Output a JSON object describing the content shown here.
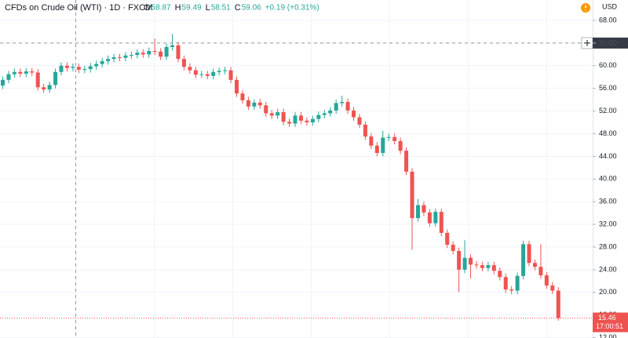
{
  "chart_data": {
    "type": "candlestick",
    "header": {
      "symbol": "CFDs on Crude Oil (WTI) · 1D · FXCM",
      "ohlc": [
        {
          "label": "O",
          "value": "58.87"
        },
        {
          "label": "H",
          "value": "59.49"
        },
        {
          "label": "L",
          "value": "58.51"
        },
        {
          "label": "C",
          "value": "59.06"
        }
      ],
      "change": "+0.19 (+0.31%)"
    },
    "currency": "USD",
    "up_color": "#26a69a",
    "down_color": "#ef5350",
    "grid": true,
    "ylim": [
      11.94,
      71.6
    ],
    "yticks": [
      {
        "value": 12,
        "label": "12.00"
      },
      {
        "value": 16,
        "label": "16.00"
      },
      {
        "value": 20,
        "label": "20.00"
      },
      {
        "value": 24,
        "label": "24.00"
      },
      {
        "value": 28,
        "label": "28.00"
      },
      {
        "value": 32,
        "label": "32.00"
      },
      {
        "value": 36,
        "label": "36.00"
      },
      {
        "value": 40,
        "label": "40.00"
      },
      {
        "value": 44,
        "label": "44.00"
      },
      {
        "value": 48,
        "label": "48.00"
      },
      {
        "value": 52,
        "label": "52.00"
      },
      {
        "value": 56,
        "label": "56.00"
      },
      {
        "value": 60,
        "label": "60.00"
      },
      {
        "value": 64,
        "label": "64.00"
      },
      {
        "value": 68,
        "label": "68.00"
      }
    ],
    "crosshair": {
      "value": 64,
      "label": "64.00"
    },
    "last_price": {
      "value": 15.46,
      "label": "15.46"
    },
    "countdown": "17:00:51",
    "ohlc": {
      "open": [
        56.5,
        57.5,
        58.5,
        58.9,
        58.6,
        59.0,
        58.8,
        56.2,
        55.8,
        56.6,
        58.9,
        60.0,
        59.6,
        59.8,
        59.3,
        59.4,
        59.9,
        60.3,
        60.8,
        61.2,
        61.5,
        61.4,
        61.8,
        61.9,
        62.3,
        62.0,
        62.6,
        62.5,
        61.6,
        63.3,
        63.6,
        61.2,
        59.8,
        59.2,
        58.4,
        58.5,
        58.2,
        58.9,
        59.1,
        59.2,
        57.5,
        55.1,
        53.9,
        52.8,
        53.5,
        53.0,
        51.6,
        51.2,
        51.8,
        50.1,
        49.8,
        51.2,
        50.3,
        50.0,
        50.6,
        51.3,
        51.6,
        52.1,
        53.4,
        53.6,
        52.1,
        50.9,
        49.6,
        47.5,
        45.9,
        44.6,
        47.3,
        47.4,
        46.7,
        45.0,
        41.3,
        33.1,
        35.4,
        34.1,
        32.2,
        34.2,
        30.5,
        28.4,
        27.3,
        24.0,
        26.1,
        24.9,
        24.8,
        24.3,
        24.8,
        23.8,
        22.7,
        20.5,
        20.3,
        22.9,
        28.5,
        25.2,
        24.5,
        23.0,
        21.2,
        20.3
      ],
      "high": [
        58.1,
        59.1,
        59.5,
        59.5,
        59.6,
        59.6,
        59.4,
        56.8,
        57.2,
        59.5,
        60.6,
        60.6,
        60.4,
        60.4,
        60.0,
        60.5,
        60.9,
        61.4,
        61.8,
        62.1,
        62.1,
        62.4,
        62.5,
        62.9,
        62.9,
        63.2,
        64.8,
        63.1,
        63.9,
        65.6,
        64.2,
        61.8,
        60.4,
        59.8,
        59.1,
        59.1,
        59.5,
        59.7,
        59.8,
        59.8,
        58.1,
        55.7,
        54.5,
        54.1,
        54.1,
        53.6,
        52.2,
        52.4,
        52.4,
        50.7,
        51.8,
        51.8,
        50.9,
        51.2,
        51.9,
        52.2,
        52.7,
        54.0,
        54.7,
        54.2,
        52.7,
        51.5,
        50.2,
        48.1,
        46.5,
        48.5,
        48.0,
        48.0,
        47.3,
        45.6,
        41.9,
        36.5,
        36.0,
        34.7,
        34.8,
        34.8,
        31.1,
        29.0,
        27.9,
        29.2,
        26.7,
        25.5,
        25.4,
        25.4,
        25.4,
        24.4,
        23.3,
        21.1,
        23.5,
        29.1,
        29.1,
        25.8,
        28.5,
        23.6,
        21.8,
        20.9
      ],
      "low": [
        55.9,
        56.9,
        57.9,
        58.0,
        58.0,
        58.2,
        55.6,
        55.2,
        55.2,
        56.0,
        58.3,
        59.0,
        59.0,
        58.7,
        58.7,
        58.8,
        59.3,
        59.7,
        60.2,
        60.6,
        60.8,
        60.8,
        61.2,
        61.3,
        61.4,
        61.4,
        61.9,
        61.0,
        61.0,
        62.7,
        60.6,
        59.2,
        58.6,
        57.8,
        57.8,
        57.6,
        57.6,
        58.3,
        58.5,
        56.9,
        54.5,
        53.3,
        52.2,
        52.2,
        52.4,
        51.0,
        50.6,
        50.6,
        49.5,
        49.2,
        49.2,
        49.7,
        49.4,
        49.4,
        50.0,
        50.7,
        51.0,
        51.5,
        52.8,
        51.5,
        50.3,
        49.0,
        46.9,
        45.3,
        44.0,
        44.0,
        46.7,
        46.1,
        44.4,
        40.7,
        27.5,
        32.5,
        33.5,
        31.6,
        31.6,
        29.9,
        27.8,
        26.7,
        20.0,
        23.4,
        22.5,
        24.2,
        23.7,
        23.7,
        23.2,
        22.1,
        19.9,
        19.7,
        19.7,
        22.3,
        24.6,
        23.9,
        22.4,
        20.6,
        19.7,
        15.0
      ],
      "close": [
        57.5,
        58.5,
        58.9,
        58.6,
        59.0,
        58.8,
        56.2,
        55.8,
        56.6,
        58.9,
        60.0,
        59.6,
        59.8,
        59.3,
        59.4,
        59.9,
        60.3,
        60.8,
        61.2,
        61.5,
        61.4,
        61.8,
        61.9,
        62.3,
        62.0,
        62.6,
        62.5,
        61.6,
        63.3,
        63.6,
        61.2,
        59.8,
        59.2,
        58.4,
        58.5,
        58.2,
        58.9,
        59.1,
        59.2,
        57.5,
        55.1,
        53.9,
        52.8,
        53.5,
        53.0,
        51.6,
        51.2,
        51.8,
        50.1,
        49.8,
        51.2,
        50.3,
        50.0,
        50.6,
        51.3,
        51.6,
        52.1,
        53.4,
        53.6,
        52.1,
        50.9,
        49.6,
        47.5,
        45.9,
        44.6,
        47.3,
        47.4,
        46.7,
        45.0,
        41.3,
        33.1,
        35.4,
        34.1,
        32.2,
        34.2,
        30.5,
        28.4,
        27.3,
        24.0,
        26.1,
        24.9,
        24.8,
        24.3,
        24.8,
        23.8,
        22.7,
        20.5,
        20.3,
        22.9,
        28.5,
        25.2,
        24.5,
        23.0,
        21.2,
        20.3,
        15.46
      ]
    }
  }
}
